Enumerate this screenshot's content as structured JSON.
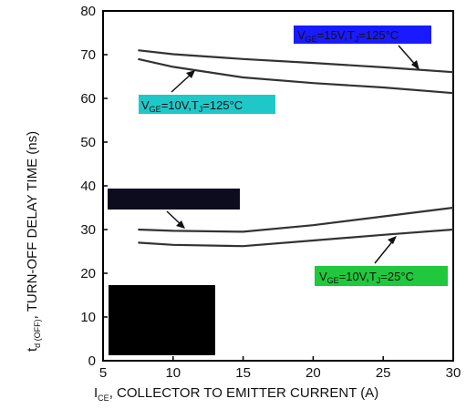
{
  "chart_data": {
    "type": "line",
    "x_axis": {
      "range": [
        5,
        30
      ],
      "ticks": [
        "5",
        "10",
        "15",
        "20",
        "25",
        "30"
      ],
      "label": "I",
      "label_sub": "CE",
      "label_rest": ", COLLECTOR TO EMITTER CURRENT (A)"
    },
    "y_axis": {
      "range": [
        0,
        80
      ],
      "ticks": [
        "0",
        "10",
        "20",
        "30",
        "40",
        "50",
        "60",
        "70",
        "80"
      ],
      "label": "t",
      "label_sub": "d (OFF)",
      "label_rest": ", TURN-OFF DELAY TIME (ns)"
    },
    "grid": false,
    "series": [
      {
        "x": [
          7.5,
          10,
          15,
          20,
          25,
          30
        ],
        "y": [
          71,
          70.1,
          69,
          68.1,
          67.1,
          66
        ]
      },
      {
        "x": [
          7.5,
          10,
          15,
          20,
          25,
          30
        ],
        "y": [
          69,
          67.2,
          64.8,
          63.5,
          62.5,
          61.2
        ]
      },
      {
        "x": [
          7.5,
          10,
          15,
          20,
          25,
          30
        ],
        "y": [
          30,
          29.7,
          29.5,
          31,
          33,
          35
        ]
      },
      {
        "x": [
          7.5,
          10,
          15,
          20,
          25,
          30
        ],
        "y": [
          27,
          26.5,
          26.2,
          27.5,
          28.8,
          30
        ]
      }
    ],
    "annotations": [
      {
        "label_main": "V",
        "label_sub1": "GE",
        "label_mid": "=15V,T",
        "label_sub2": "J",
        "label_end": "=125°C",
        "color": "#1a1aff"
      },
      {
        "label_main": "V",
        "label_sub1": "GE",
        "label_mid": "=10V,T",
        "label_sub2": "J",
        "label_end": "=125°C",
        "color": "#1fc8c8"
      },
      {
        "label_main": "V",
        "label_sub1": "GE",
        "label_mid": "=10V,T",
        "label_sub2": "J",
        "label_end": "=25°C",
        "color": "#1fc83c"
      }
    ],
    "colors": {
      "line": "#333333",
      "frame": "#000000",
      "redaction_dark": "#0c0c1e",
      "redaction_black": "#000000"
    }
  }
}
